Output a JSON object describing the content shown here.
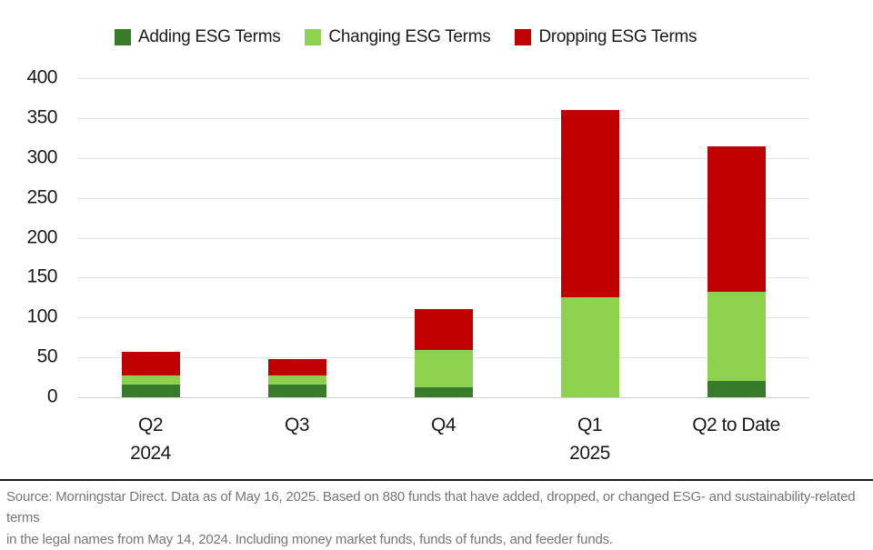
{
  "legend": {
    "items": [
      {
        "label": "Adding ESG Terms",
        "color": "#387c2b"
      },
      {
        "label": "Changing ESG Terms",
        "color": "#8ed14f"
      },
      {
        "label": "Dropping ESG Terms",
        "color": "#c00000"
      }
    ]
  },
  "chart_data": {
    "type": "bar",
    "stacked": true,
    "categories": [
      "Q2 2024",
      "Q3",
      "Q4",
      "Q1 2025",
      "Q2 to Date"
    ],
    "category_labels": [
      {
        "line1": "Q2",
        "line2": "2024"
      },
      {
        "line1": "Q3",
        "line2": ""
      },
      {
        "line1": "Q4",
        "line2": ""
      },
      {
        "line1": "Q1",
        "line2": "2025"
      },
      {
        "line1": "Q2 to Date",
        "line2": ""
      }
    ],
    "series": [
      {
        "name": "Adding ESG Terms",
        "color": "#387c2b",
        "values": [
          16,
          16,
          13,
          0,
          20
        ]
      },
      {
        "name": "Changing ESG Terms",
        "color": "#8ed14f",
        "values": [
          11,
          11,
          46,
          125,
          112
        ]
      },
      {
        "name": "Dropping ESG Terms",
        "color": "#c00000",
        "values": [
          30,
          21,
          51,
          235,
          183
        ]
      }
    ],
    "totals": [
      57,
      48,
      110,
      360,
      315
    ],
    "title": "",
    "xlabel": "",
    "ylabel": "",
    "ylim": [
      0,
      400
    ],
    "yticks": [
      0,
      50,
      100,
      150,
      200,
      250,
      300,
      350,
      400
    ],
    "grid": true,
    "legend_position": "top"
  },
  "footer": {
    "lines": [
      "Source: Morningstar Direct. Data as of May 16, 2025. Based on 880 funds that have added, dropped, or changed ESG- and sustainability-related terms",
      "in the legal names from May 14, 2024. Including money market funds, funds of funds, and feeder funds."
    ]
  }
}
